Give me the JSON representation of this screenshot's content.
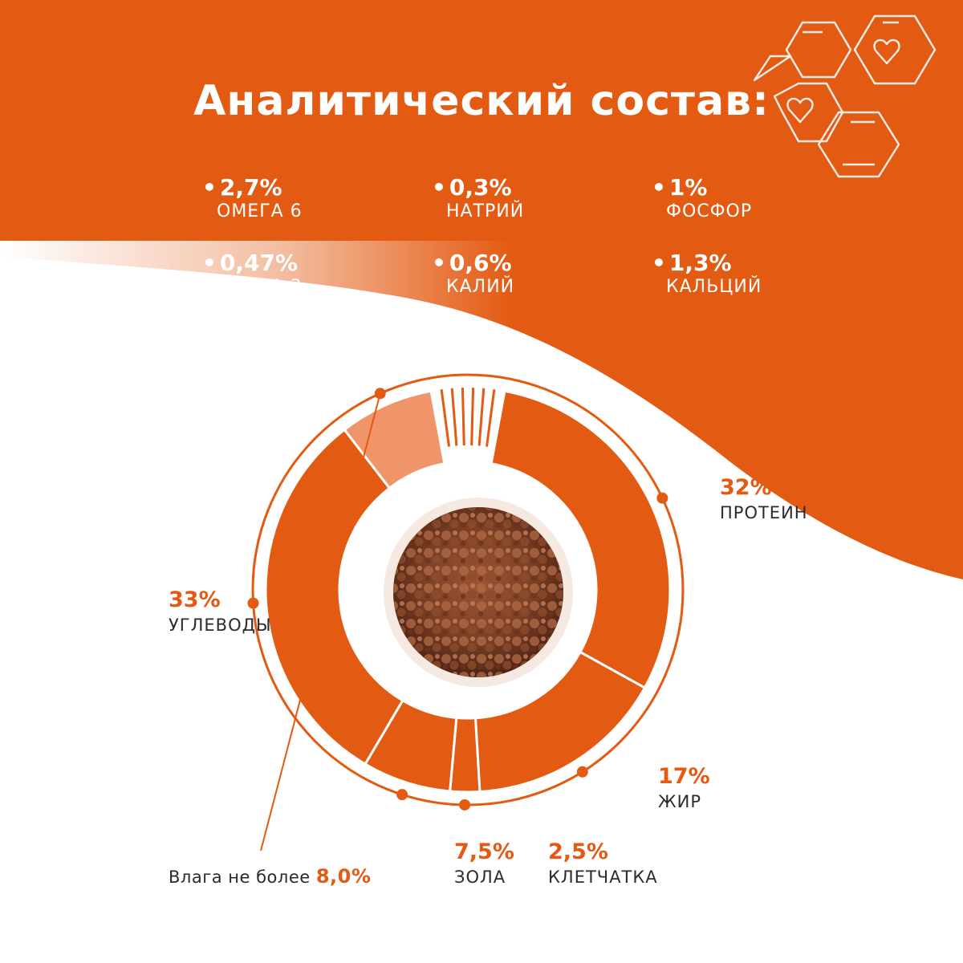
{
  "title": "Аналитический состав:",
  "colors": {
    "accent": "#e35a12",
    "light": "#f0956a",
    "text": "#2b2b2b",
    "white": "#ffffff"
  },
  "icons": {
    "decoration": "honeycomb-hearts-icon",
    "center_image": "dry-kibble-photo"
  },
  "nutrients": [
    {
      "value": "2,7%",
      "label": "ОМЕГА 6"
    },
    {
      "value": "0,3%",
      "label": "НАТРИЙ"
    },
    {
      "value": "1%",
      "label": "ФОСФОР"
    },
    {
      "value": "0,47%",
      "label": "ОМЕГА 3"
    },
    {
      "value": "0,6%",
      "label": "КАЛИЙ"
    },
    {
      "value": "1,3%",
      "label": "КАЛЬЦИЙ"
    }
  ],
  "moisture": {
    "prefix": "Влага не более",
    "value": "8,0%"
  },
  "chart_data": {
    "type": "pie",
    "subtype": "donut",
    "categories": [
      "ПРОТЕИН",
      "ЖИР",
      "КЛЕТЧАТКА",
      "ЗОЛА",
      "УГЛЕВОДЫ",
      "ВЛАГА"
    ],
    "values": [
      32,
      17,
      2.5,
      7.5,
      33,
      8.0
    ],
    "value_labels": [
      "32%",
      "17%",
      "2,5%",
      "7,5%",
      "33%",
      "8,0%"
    ]
  }
}
